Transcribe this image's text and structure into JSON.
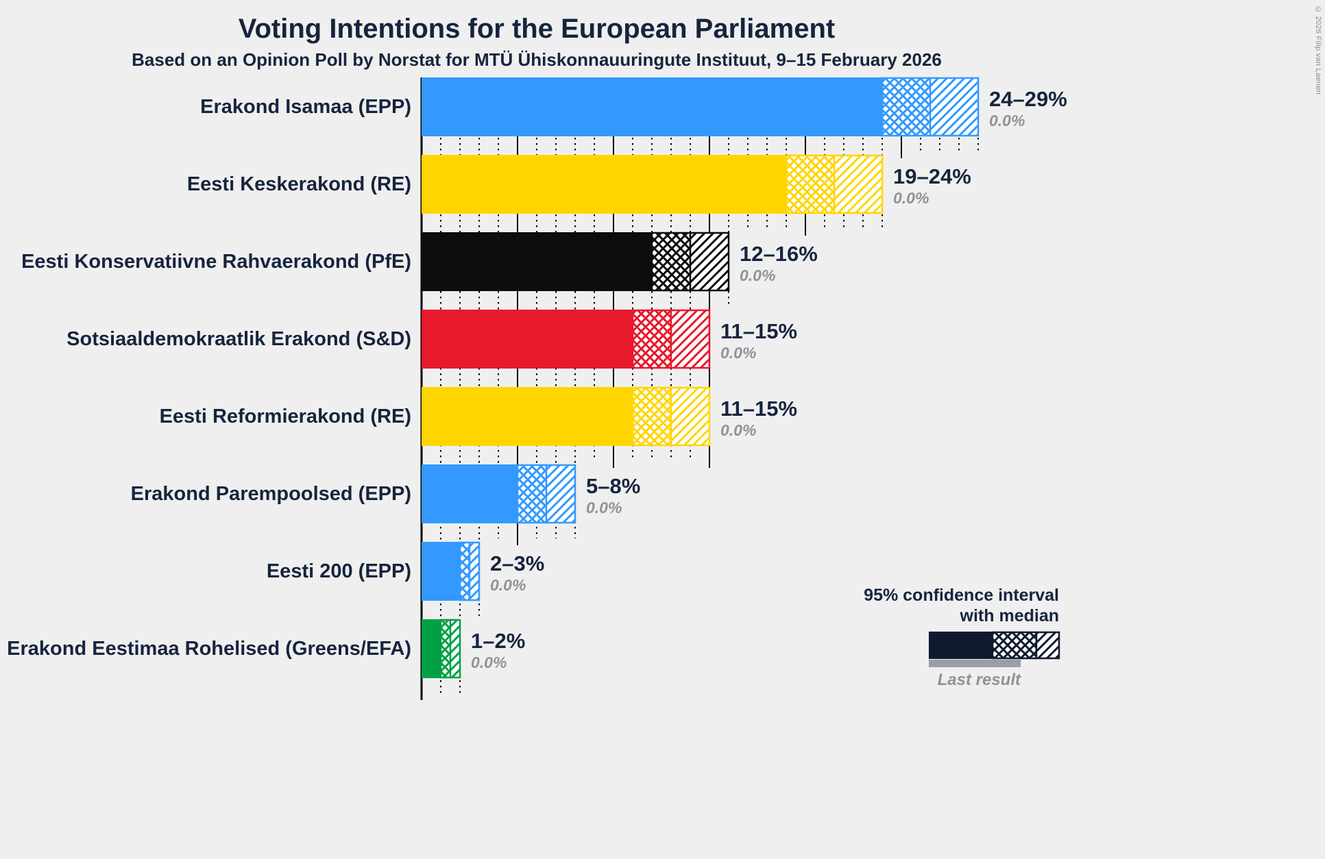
{
  "theme": {
    "background": "#efefef",
    "text": "#16243e",
    "muted": "#8f9399",
    "grid": "#000000"
  },
  "footer": {
    "copyright": "© 2026 Filip van Laenen"
  },
  "chart_data": {
    "type": "bar",
    "orientation": "horizontal",
    "title": "Voting Intentions for the European Parliament",
    "subtitle": "Based on an Opinion Poll by Norstat for MTÜ Ühiskonnauuringute Instituut, 9–15 February 2026",
    "x_axis": {
      "min": 0,
      "max": 29,
      "unit": "%",
      "minor_tick_interval": 1,
      "major_tick_interval": 5,
      "tick_labels_visible": false,
      "grid": true
    },
    "legend": {
      "line1": "95% confidence interval",
      "line2": "with median",
      "last_result_label": "Last result",
      "sample_color": "#101a2e",
      "last_result_color": "#9a9ea6"
    },
    "note": "Solid bar spans 0 to CI low; crosshatch spans CI low to median; diagonal hatch spans median to CI high; gray value below each range is the last result.",
    "bars": [
      {
        "label": "Erakond Isamaa (EPP)",
        "group": "EPP",
        "color": "#3399ff",
        "ci_low": 24,
        "median": 26.5,
        "ci_high": 29,
        "range_label": "24–29%",
        "last_result": 0.0,
        "last_result_label": "0.0%"
      },
      {
        "label": "Eesti Keskerakond (RE)",
        "group": "RE",
        "color": "#ffd500",
        "ci_low": 19,
        "median": 21.5,
        "ci_high": 24,
        "range_label": "19–24%",
        "last_result": 0.0,
        "last_result_label": "0.0%"
      },
      {
        "label": "Eesti Konservatiivne Rahvaerakond (PfE)",
        "group": "PfE",
        "color": "#0d0d0d",
        "ci_low": 12,
        "median": 14,
        "ci_high": 16,
        "range_label": "12–16%",
        "last_result": 0.0,
        "last_result_label": "0.0%"
      },
      {
        "label": "Sotsiaaldemokraatlik Erakond (S&D)",
        "group": "S&D",
        "color": "#e8192c",
        "ci_low": 11,
        "median": 13,
        "ci_high": 15,
        "range_label": "11–15%",
        "last_result": 0.0,
        "last_result_label": "0.0%"
      },
      {
        "label": "Eesti Reformierakond (RE)",
        "group": "RE",
        "color": "#ffd500",
        "ci_low": 11,
        "median": 13,
        "ci_high": 15,
        "range_label": "11–15%",
        "last_result": 0.0,
        "last_result_label": "0.0%"
      },
      {
        "label": "Erakond Parempoolsed (EPP)",
        "group": "EPP",
        "color": "#3399ff",
        "ci_low": 5,
        "median": 6.5,
        "ci_high": 8,
        "range_label": "5–8%",
        "last_result": 0.0,
        "last_result_label": "0.0%"
      },
      {
        "label": "Eesti 200 (EPP)",
        "group": "EPP",
        "color": "#3399ff",
        "ci_low": 2,
        "median": 2.5,
        "ci_high": 3,
        "range_label": "2–3%",
        "last_result": 0.0,
        "last_result_label": "0.0%"
      },
      {
        "label": "Erakond Eestimaa Rohelised (Greens/EFA)",
        "group": "Greens/EFA",
        "color": "#00a146",
        "ci_low": 1,
        "median": 1.5,
        "ci_high": 2,
        "range_label": "1–2%",
        "last_result": 0.0,
        "last_result_label": "0.0%"
      }
    ]
  }
}
